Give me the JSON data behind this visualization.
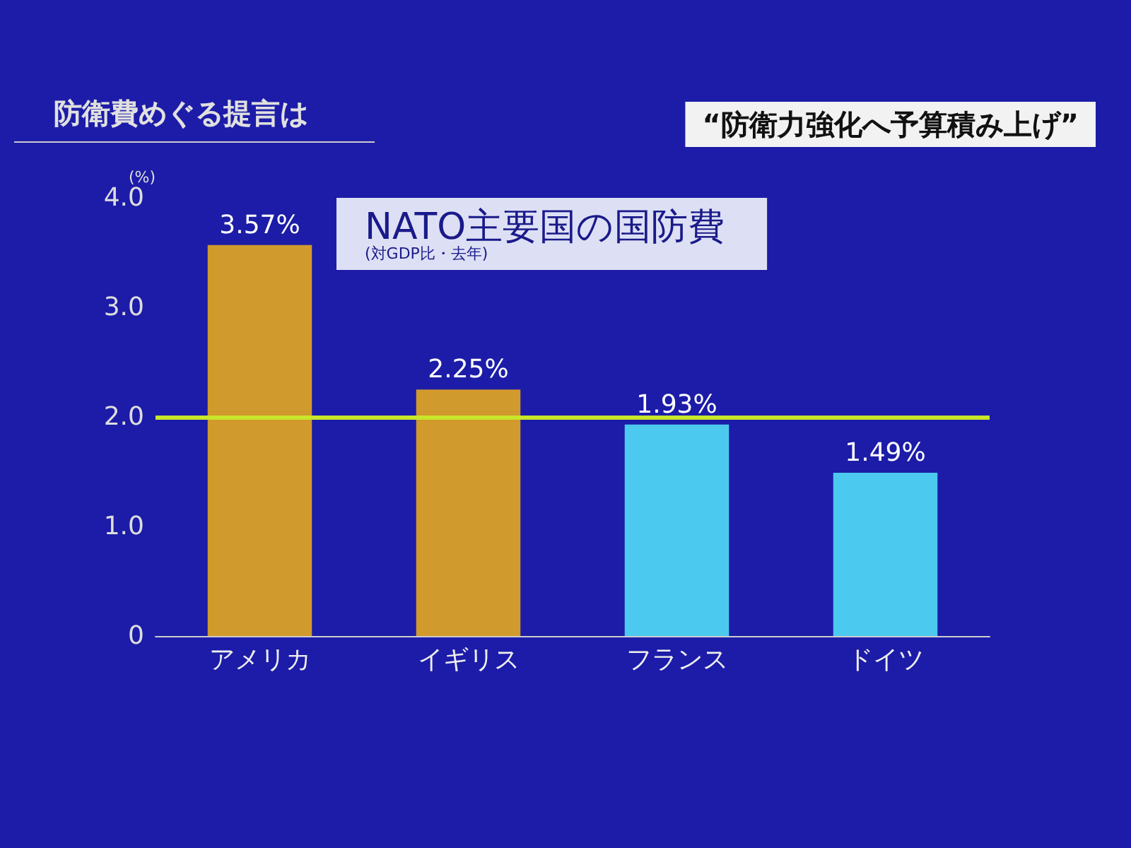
{
  "chart_data": {
    "type": "bar",
    "title": "NATO主要国の国防費",
    "subtitle": "(対GDP比・去年)",
    "ylabel": "(%)",
    "annotations": [
      "防衛費めぐる提言は",
      "“防衛力強化へ予算積み上げ”"
    ],
    "categories": [
      "アメリカ",
      "イギリス",
      "フランス",
      "ドイツ"
    ],
    "values": [
      3.57,
      2.25,
      1.93,
      1.49
    ],
    "colors": [
      "#d19a2c",
      "#d19a2c",
      "#4cc9ef",
      "#4cc9ef"
    ],
    "value_labels": [
      "3.57%",
      "2.25%",
      "1.93%",
      "1.49%"
    ],
    "ylim": [
      0,
      4
    ],
    "yticks": [
      {
        "value": 0,
        "label": "0"
      },
      {
        "value": 1,
        "label": "1.0"
      },
      {
        "value": 2,
        "label": "2.0"
      },
      {
        "value": 3,
        "label": "3.0"
      },
      {
        "value": 4,
        "label": "4.0"
      }
    ],
    "ref_lines": [
      {
        "axis": "y",
        "value": 2,
        "label": null,
        "color": "#c8e62a"
      }
    ],
    "grid": false
  }
}
